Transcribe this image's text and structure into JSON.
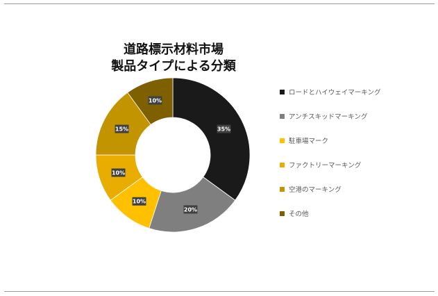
{
  "chart_data": {
    "type": "pie",
    "donut": true,
    "title_lines": [
      "道路標示材料市場",
      "製品タイプによる分類"
    ],
    "categories": [
      "ロードとハイウェイマーキング",
      "アンチスキッドマーキング",
      "駐車場マーク",
      "ファクトリーマーキング",
      "空港のマーキング",
      "その他"
    ],
    "values": [
      35,
      20,
      10,
      10,
      15,
      10
    ],
    "value_labels": [
      "35%",
      "20%",
      "10%",
      "10%",
      "15%",
      "10%"
    ],
    "colors": [
      "#1a1a1a",
      "#7f7f7f",
      "#ffc000",
      "#e8ad00",
      "#c29400",
      "#7f6000"
    ],
    "legend_position": "right"
  }
}
